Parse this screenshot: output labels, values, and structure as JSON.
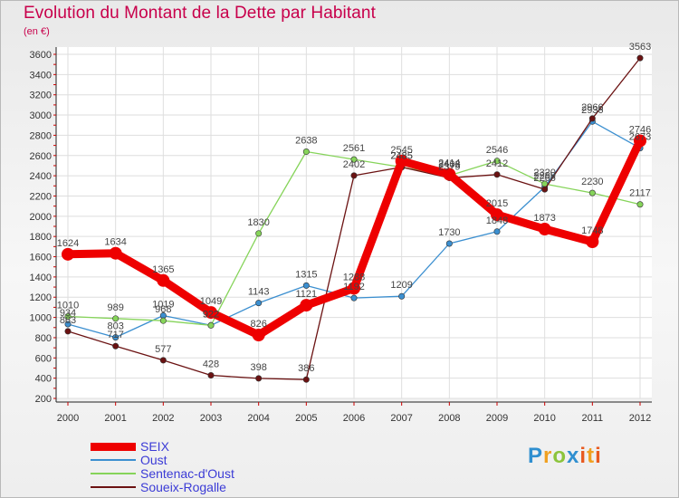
{
  "title": "Evolution du Montant de la Dette par Habitant",
  "subtitle": "(en €)",
  "brand": "Proxiti",
  "chart_data": {
    "type": "line",
    "x": [
      "2000",
      "2001",
      "2002",
      "2003",
      "2004",
      "2005",
      "2006",
      "2007",
      "2008",
      "2009",
      "2010",
      "2011",
      "2012"
    ],
    "ylim": [
      200,
      3600
    ],
    "yticks": [
      200,
      400,
      600,
      800,
      1000,
      1200,
      1400,
      1600,
      1800,
      2000,
      2200,
      2400,
      2600,
      2800,
      3000,
      3200,
      3400,
      3600
    ],
    "grid": true,
    "legend": "bottom-left",
    "series": [
      {
        "name": "SEIX",
        "color": "#ee0000",
        "values": [
          1624,
          1634,
          1365,
          1049,
          826,
          1121,
          1288,
          2545,
          2414,
          2015,
          1873,
          1748,
          2746
        ],
        "labels": [
          "1624",
          "1634",
          "1365",
          "1049",
          "826",
          "1121",
          "1288",
          "2545",
          "2414",
          "2015",
          "1873",
          "1748",
          "2746"
        ]
      },
      {
        "name": "Oust",
        "color": "#3b8fd0",
        "values": [
          934,
          803,
          1019,
          922,
          1143,
          1315,
          1192,
          1209,
          1730,
          1848,
          2289,
          2936,
          2673
        ],
        "labels": [
          "934",
          "803",
          "1019",
          "922",
          "1143",
          "1315",
          "1192",
          "1209",
          "1730",
          "1848",
          "2289",
          "2936",
          "2673"
        ]
      },
      {
        "name": "Sentenac-d'Oust",
        "color": "#86d45a",
        "values": [
          1010,
          989,
          968,
          922,
          1830,
          2638,
          2561,
          2485,
          2402,
          2546,
          2320,
          2230,
          2117
        ],
        "labels": [
          "1010",
          "989",
          "968",
          "922",
          "1830",
          "2638",
          "2561",
          "2485",
          "2402",
          "2546",
          "2320",
          "2230",
          "2117"
        ]
      },
      {
        "name": "Soueix-Rogalle",
        "color": "#6b1212",
        "values": [
          863,
          717,
          577,
          428,
          398,
          386,
          2402,
          2485,
          2379,
          2412,
          2266,
          2966,
          3563
        ],
        "labels": [
          "863",
          "717",
          "577",
          "428",
          "398",
          "386",
          "2402",
          "2485",
          "2379",
          "2412",
          "2266",
          "2966",
          "3563"
        ]
      }
    ]
  }
}
